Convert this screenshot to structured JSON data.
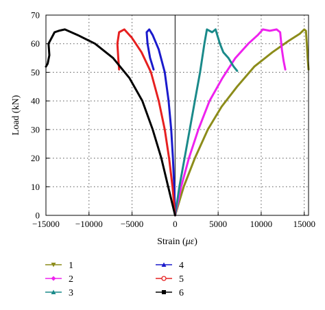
{
  "chart_data": {
    "type": "line",
    "xlabel_prefix": "Strain (",
    "xlabel_unit": "με",
    "xlabel_suffix": ")",
    "ylabel": "Load (kN)",
    "xlim": [
      -15000,
      15500
    ],
    "ylim": [
      0,
      70
    ],
    "x_ticks": [
      -15000,
      -10000,
      -5000,
      0,
      5000,
      10000,
      15000
    ],
    "x_tick_labels": [
      "−15000",
      "−10000",
      "−5000",
      "0",
      "5000",
      "10000",
      "15000"
    ],
    "y_ticks": [
      0,
      10,
      20,
      30,
      40,
      50,
      60,
      70
    ],
    "y_tick_labels": [
      "0",
      "10",
      "20",
      "30",
      "40",
      "50",
      "60",
      "70"
    ],
    "grid": true,
    "legend_position": "bottom",
    "series": [
      {
        "name": "1",
        "color": "#8c8c1a",
        "marker": "triangle-down",
        "points": [
          [
            0,
            0
          ],
          [
            1000,
            10
          ],
          [
            2300,
            20
          ],
          [
            3800,
            30
          ],
          [
            5400,
            38
          ],
          [
            7200,
            45
          ],
          [
            9200,
            52
          ],
          [
            11300,
            57
          ],
          [
            13200,
            61
          ],
          [
            14500,
            63.5
          ],
          [
            15000,
            65
          ],
          [
            15200,
            64.5
          ],
          [
            15300,
            60
          ],
          [
            15400,
            55
          ],
          [
            15500,
            51
          ]
        ]
      },
      {
        "name": "2",
        "color": "#ee22ee",
        "marker": "diamond",
        "points": [
          [
            0,
            0
          ],
          [
            700,
            10
          ],
          [
            1600,
            20
          ],
          [
            2700,
            30
          ],
          [
            4000,
            40
          ],
          [
            5500,
            48
          ],
          [
            7000,
            55
          ],
          [
            8500,
            60
          ],
          [
            9600,
            63
          ],
          [
            10200,
            65
          ],
          [
            11000,
            64.5
          ],
          [
            11800,
            65
          ],
          [
            12200,
            64
          ],
          [
            12400,
            58
          ],
          [
            12600,
            54
          ],
          [
            12800,
            51
          ]
        ]
      },
      {
        "name": "3",
        "color": "#1a8a8a",
        "marker": "triangle-up",
        "points": [
          [
            0,
            0
          ],
          [
            500,
            10
          ],
          [
            1100,
            20
          ],
          [
            1700,
            30
          ],
          [
            2300,
            40
          ],
          [
            2900,
            50
          ],
          [
            3400,
            60
          ],
          [
            3700,
            65
          ],
          [
            4300,
            64
          ],
          [
            4700,
            65
          ],
          [
            5200,
            60
          ],
          [
            5600,
            57
          ],
          [
            6200,
            55
          ],
          [
            6800,
            52
          ],
          [
            7200,
            50.5
          ]
        ]
      },
      {
        "name": "4",
        "color": "#1a1acc",
        "marker": "triangle-up",
        "points": [
          [
            0,
            0
          ],
          [
            -100,
            10
          ],
          [
            -250,
            20
          ],
          [
            -450,
            30
          ],
          [
            -750,
            40
          ],
          [
            -1200,
            50
          ],
          [
            -1900,
            58
          ],
          [
            -2600,
            63
          ],
          [
            -3000,
            65
          ],
          [
            -3300,
            64
          ],
          [
            -3200,
            60
          ],
          [
            -2900,
            55
          ],
          [
            -2700,
            53
          ],
          [
            -2500,
            51
          ]
        ]
      },
      {
        "name": "5",
        "color": "#e62020",
        "marker": "circle-open",
        "points": [
          [
            0,
            0
          ],
          [
            -300,
            10
          ],
          [
            -700,
            20
          ],
          [
            -1200,
            30
          ],
          [
            -1900,
            40
          ],
          [
            -2800,
            50
          ],
          [
            -3900,
            57
          ],
          [
            -5000,
            62
          ],
          [
            -5900,
            65
          ],
          [
            -6500,
            64
          ],
          [
            -6700,
            60
          ],
          [
            -6600,
            55
          ],
          [
            -6500,
            51
          ]
        ]
      },
      {
        "name": "6",
        "color": "#000000",
        "marker": "square",
        "points": [
          [
            0,
            0
          ],
          [
            -800,
            10
          ],
          [
            -1600,
            20
          ],
          [
            -2600,
            30
          ],
          [
            -3800,
            40
          ],
          [
            -5300,
            48
          ],
          [
            -7200,
            55
          ],
          [
            -9300,
            60
          ],
          [
            -11300,
            63
          ],
          [
            -12800,
            65
          ],
          [
            -13500,
            64.5
          ],
          [
            -14000,
            64
          ],
          [
            -14700,
            60
          ],
          [
            -14600,
            56
          ],
          [
            -14800,
            53
          ],
          [
            -15000,
            52
          ]
        ]
      }
    ]
  }
}
